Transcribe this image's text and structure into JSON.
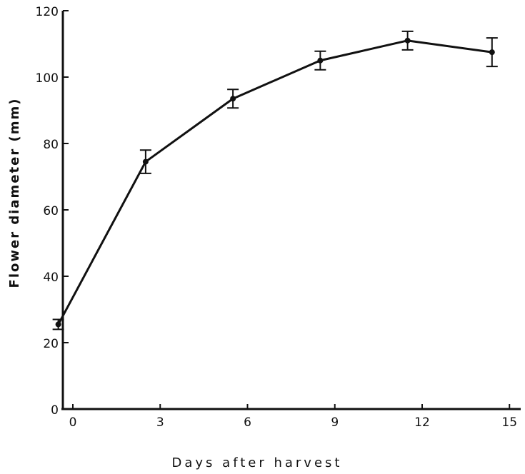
{
  "chart_data": {
    "type": "line",
    "title": "",
    "xlabel": "Days after harvest",
    "ylabel": "Flower diameter (mm)",
    "xlim": [
      -0.5,
      15
    ],
    "ylim": [
      0,
      120
    ],
    "xticks": [
      0,
      3,
      6,
      9,
      12,
      15
    ],
    "yticks": [
      0,
      20,
      40,
      60,
      80,
      100,
      120
    ],
    "x_tick_labels": [
      "0",
      "3",
      "6",
      "9",
      "12",
      "15"
    ],
    "y_tick_labels": [
      "0",
      "20",
      "40",
      "60",
      "80",
      "100",
      "120"
    ],
    "grid": false,
    "legend": "none",
    "series": [
      {
        "x": [
          -0.5,
          2.5,
          5.5,
          8.5,
          11.5,
          14.4
        ],
        "y": [
          25.5,
          74.5,
          93.5,
          105,
          111,
          107.5
        ],
        "error": [
          1.5,
          3.5,
          2.8,
          2.8,
          2.8,
          4.3
        ]
      }
    ],
    "line_color": "#111111"
  }
}
